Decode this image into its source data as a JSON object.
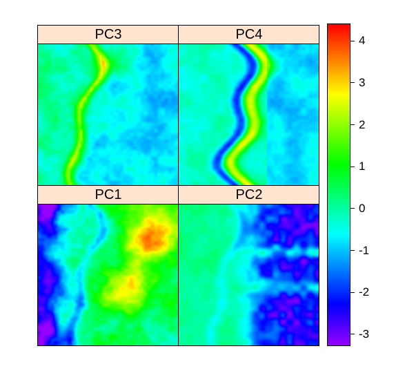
{
  "chart_data": {
    "type": "heatmap",
    "layout": "2x2 lattice levelplot",
    "panels": [
      {
        "id": "pc3",
        "title": "PC3",
        "dominant_range": [
          -1,
          1.5
        ],
        "features": "bright yellow-green winding channel on left half"
      },
      {
        "id": "pc4",
        "title": "PC4",
        "dominant_range": [
          -2,
          2.5
        ],
        "features": "yellow vertical band in center-right; blue channel to the left"
      },
      {
        "id": "pc1",
        "title": "PC1",
        "dominant_range": [
          -3,
          4
        ],
        "features": "purple/blue area on left; orange-red highs on upper right"
      },
      {
        "id": "pc2",
        "title": "PC2",
        "dominant_range": [
          -2.5,
          1
        ],
        "features": "green left area; blue mottled right area"
      }
    ],
    "colorbar": {
      "range": [
        -3.25,
        4.4
      ],
      "ticks": [
        4,
        3,
        2,
        1,
        0,
        -1,
        -2,
        -3
      ],
      "tick_labels": [
        "4",
        "3",
        "2",
        "1",
        "0",
        "-1",
        "-2",
        "-3"
      ],
      "palette": "rainbow (purple-blue-cyan-green-yellow-orange-red)"
    },
    "strip_color": "#ffe4cf"
  }
}
